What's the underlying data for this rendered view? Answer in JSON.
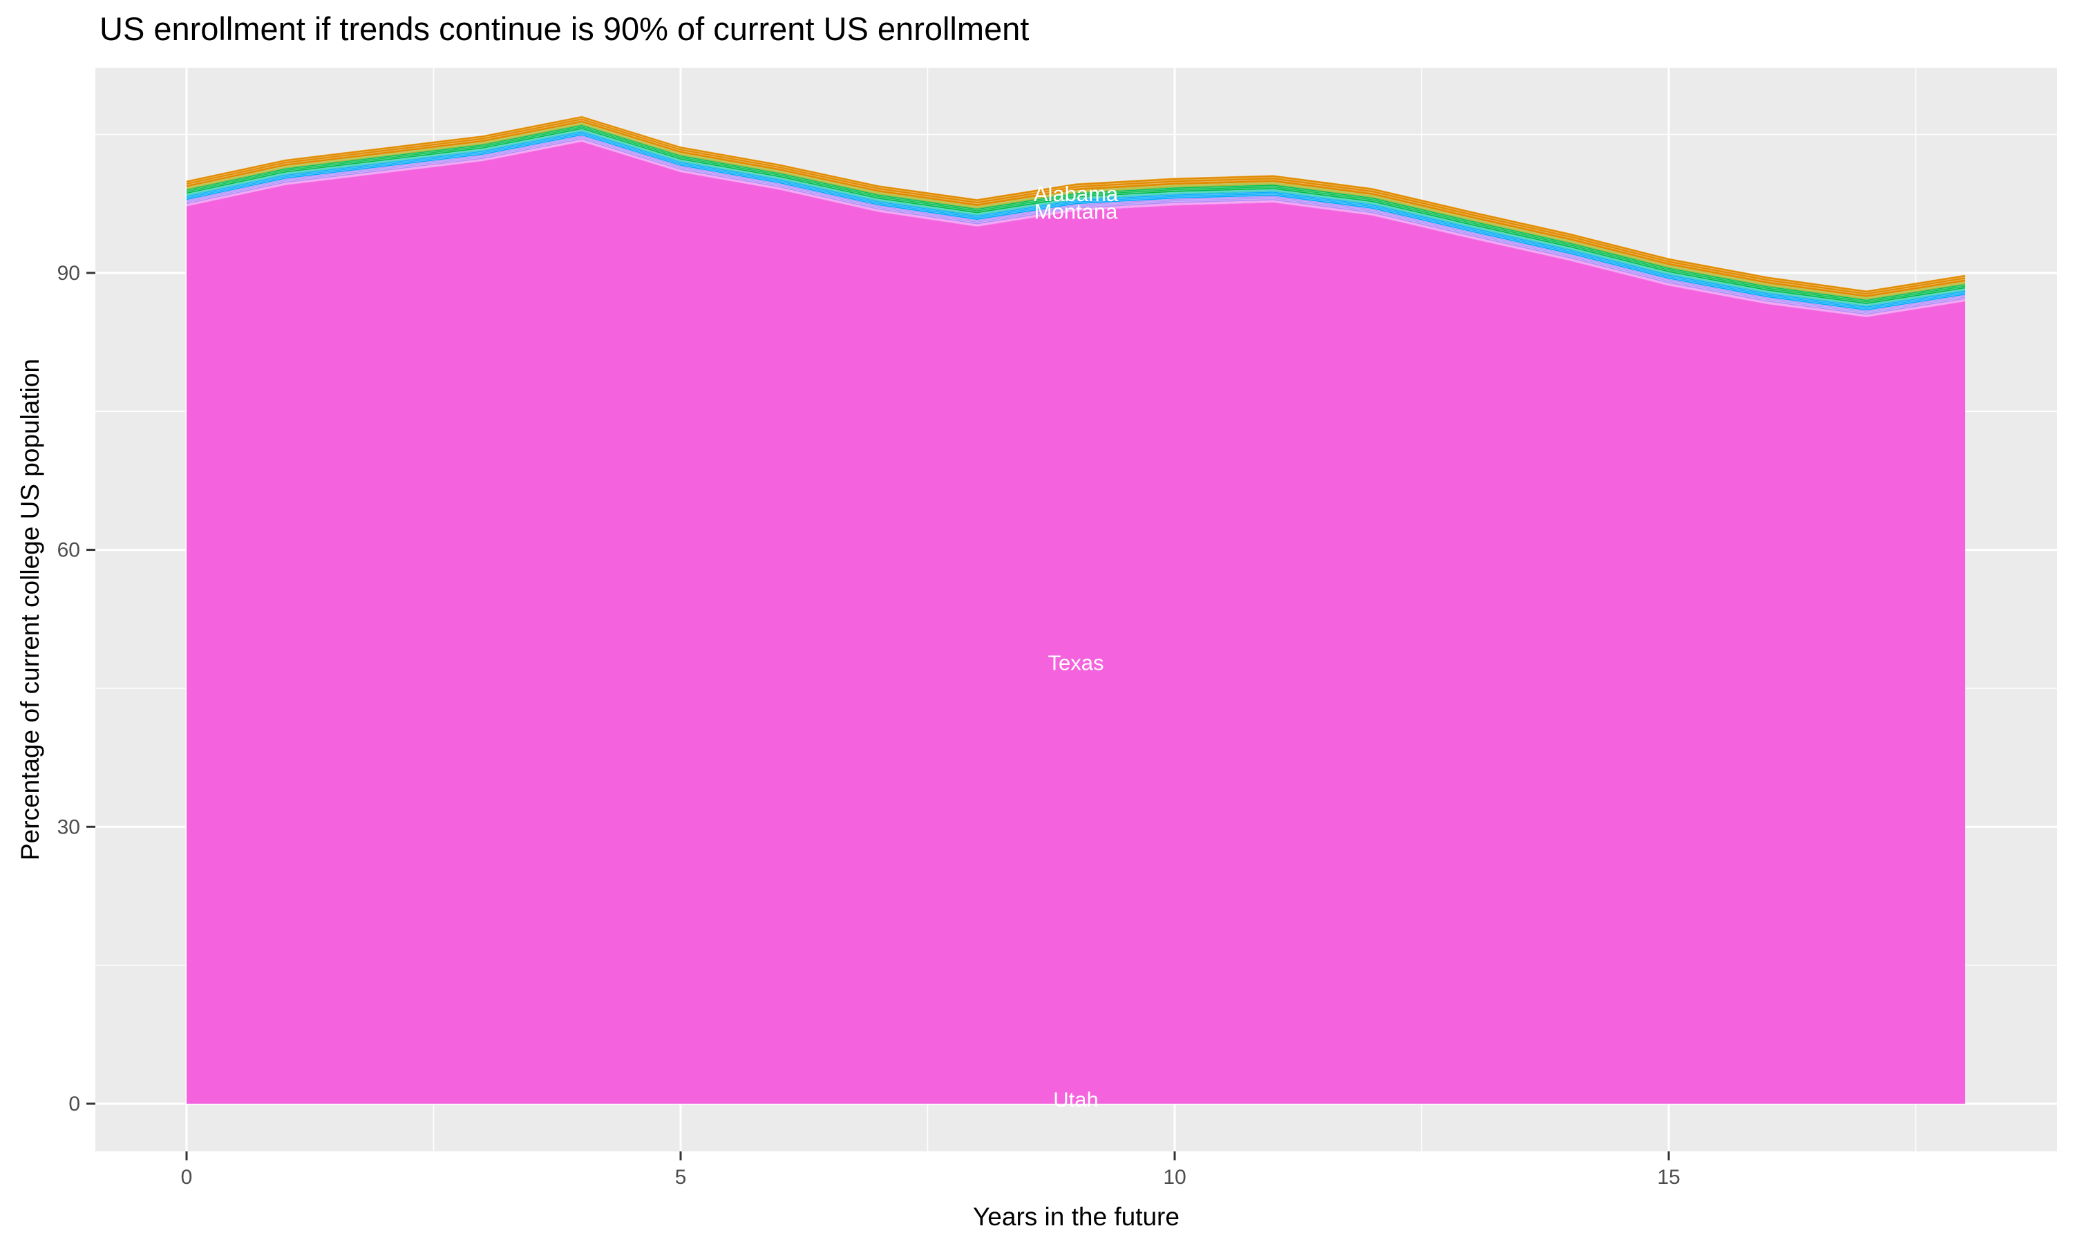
{
  "title": "US enrollment if trends continue is 90% of current US enrollment",
  "chart_data": {
    "type": "area",
    "stacked": true,
    "title": "US enrollment if trends continue is 90% of current US enrollment",
    "xlabel": "Years in the future",
    "ylabel": "Percentage of current college US population",
    "legend": "none",
    "grid": "on",
    "panel_bg": "#EBEBEB",
    "grid_color": "#FFFFFF",
    "tick_text_color": "#4D4D4D",
    "tick_mark_color": "#333333",
    "xlim": [
      -0.92,
      18.9
    ],
    "ylim": [
      -5.4,
      112.3
    ],
    "x_ticks": [
      0,
      5,
      10,
      15
    ],
    "x_minor_ticks": [
      2.5,
      7.5,
      12.5,
      17.5
    ],
    "y_ticks": [
      0,
      30,
      60,
      90
    ],
    "y_minor_ticks": [
      15,
      45,
      75,
      105
    ],
    "x": [
      0,
      1,
      2,
      3,
      4,
      5,
      6,
      7,
      8,
      9,
      10,
      11,
      12,
      13,
      14,
      15,
      16,
      17,
      18
    ],
    "stack_total_top": [
      100.0,
      102.3,
      103.6,
      104.9,
      107.0,
      103.7,
      101.8,
      99.5,
      98.0,
      99.7,
      100.3,
      100.6,
      99.2,
      96.7,
      94.3,
      91.6,
      89.6,
      88.1,
      89.8
    ],
    "texas_top": [
      97.2,
      99.5,
      100.8,
      102.1,
      104.2,
      100.9,
      99.0,
      96.6,
      95.0,
      96.7,
      97.3,
      97.6,
      96.2,
      93.7,
      91.3,
      88.6,
      86.6,
      85.2,
      86.9
    ],
    "texas_color": "#F462DE",
    "texas_baseline": 0,
    "upper_state_bands": [
      {
        "name": "pink-states-sliver",
        "color": "#F07CEE",
        "fraction": 0.09
      },
      {
        "name": "lavender-states-band",
        "color": "#B18CFA",
        "fraction": 0.16
      },
      {
        "name": "blue-states-band",
        "color": "#00A9FB",
        "fraction": 0.16
      },
      {
        "name": "teal-states-sliver",
        "color": "#00C0A9",
        "fraction": 0.08
      },
      {
        "name": "green-states-band",
        "color": "#00BC4B",
        "fraction": 0.17
      },
      {
        "name": "olive-states-sliver",
        "color": "#9EA700",
        "fraction": 0.09
      },
      {
        "name": "orange-states-band",
        "color": "#E08B00",
        "fraction": 0.25
      }
    ],
    "area_labels": [
      {
        "text": "Alabama",
        "x": 9,
        "y": 98.6
      },
      {
        "text": "Montana",
        "x": 9,
        "y": 96.7
      },
      {
        "text": "Texas",
        "x": 9,
        "y": 47.8
      },
      {
        "text": "Utah",
        "x": 9,
        "y": 0.5
      }
    ],
    "area_label_color": "#FFFFFF"
  }
}
